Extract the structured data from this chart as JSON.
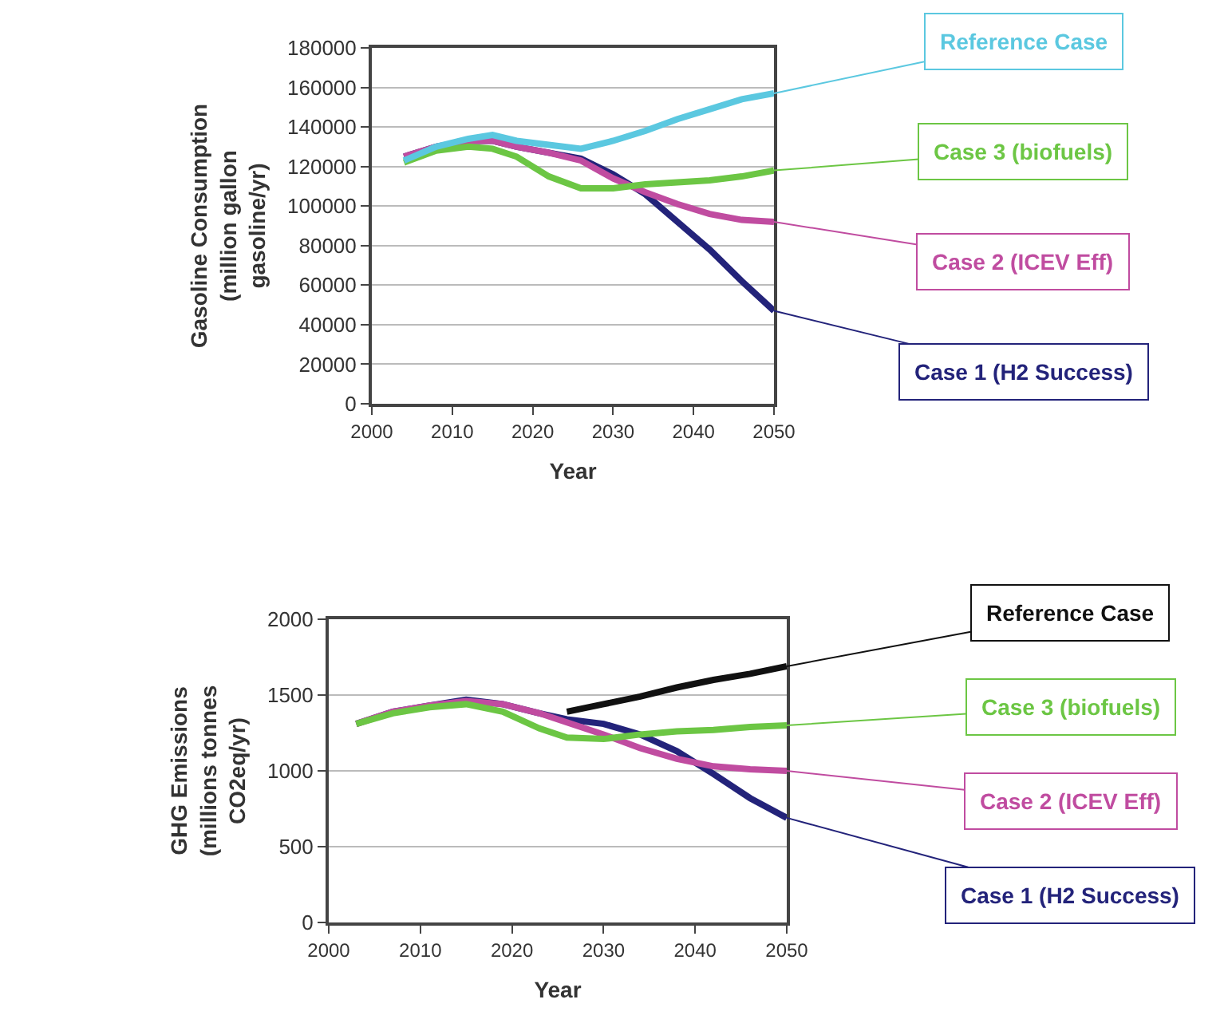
{
  "chart_data": [
    {
      "type": "line",
      "xlabel": "Year",
      "ylabel": "Gasoline Consumption\n(million gallon\ngasoline/yr)",
      "xlim": [
        2000,
        2050
      ],
      "xticks": [
        2000,
        2010,
        2020,
        2030,
        2040,
        2050
      ],
      "ylim": [
        0,
        180000
      ],
      "yticks": [
        0,
        20000,
        40000,
        60000,
        80000,
        100000,
        120000,
        140000,
        160000,
        180000
      ],
      "grid": "y",
      "legend": false,
      "x": [
        2004,
        2008,
        2012,
        2015,
        2018,
        2022,
        2026,
        2030,
        2034,
        2038,
        2042,
        2046,
        2050
      ],
      "series": [
        {
          "name": "Reference Case",
          "color": "#5bc8e0",
          "values": [
            123000,
            130000,
            134000,
            136000,
            133000,
            131000,
            129000,
            133000,
            138000,
            144000,
            149000,
            154000,
            157000
          ]
        },
        {
          "name": "Case 3 (biofuels)",
          "color": "#6cc644",
          "values": [
            122000,
            128000,
            130000,
            129000,
            125000,
            115000,
            109000,
            109000,
            111000,
            112000,
            113000,
            115000,
            118000
          ]
        },
        {
          "name": "Case 2 (ICEV Eff)",
          "color": "#c04ca0",
          "values": [
            125000,
            130000,
            133000,
            133000,
            130000,
            127000,
            123000,
            114000,
            107000,
            101000,
            96000,
            93000,
            92000
          ]
        },
        {
          "name": "Case 1 (H2 Success)",
          "color": "#23237a",
          "values": [
            125000,
            130000,
            133000,
            133000,
            130000,
            127000,
            124000,
            116000,
            106000,
            92000,
            78000,
            62000,
            47000
          ]
        }
      ]
    },
    {
      "type": "line",
      "xlabel": "Year",
      "ylabel": "GHG Emissions\n(millions tonnes\nCO2eq/yr)",
      "xlim": [
        2000,
        2050
      ],
      "xticks": [
        2000,
        2010,
        2020,
        2030,
        2040,
        2050
      ],
      "ylim": [
        0,
        2000
      ],
      "yticks": [
        0,
        500,
        1000,
        1500,
        2000
      ],
      "grid": "y",
      "legend": false,
      "x": [
        2003,
        2007,
        2011,
        2015,
        2019,
        2023,
        2026,
        2030,
        2034,
        2038,
        2042,
        2046,
        2050
      ],
      "series": [
        {
          "name": "Reference Case",
          "color": "#111111",
          "values": [
            null,
            null,
            null,
            null,
            null,
            null,
            1390,
            1440,
            1490,
            1550,
            1600,
            1640,
            1690
          ]
        },
        {
          "name": "Case 3 (biofuels)",
          "color": "#6cc644",
          "values": [
            1310,
            1380,
            1420,
            1440,
            1390,
            1280,
            1220,
            1210,
            1240,
            1260,
            1270,
            1290,
            1300
          ]
        },
        {
          "name": "Case 2 (ICEV Eff)",
          "color": "#c04ca0",
          "values": [
            1310,
            1390,
            1430,
            1460,
            1440,
            1380,
            1320,
            1240,
            1150,
            1080,
            1030,
            1010,
            1000
          ]
        },
        {
          "name": "Case 1 (H2 Success)",
          "color": "#23237a",
          "values": [
            1310,
            1390,
            1430,
            1470,
            1440,
            1380,
            1340,
            1310,
            1240,
            1130,
            980,
            820,
            690
          ]
        }
      ]
    }
  ]
}
